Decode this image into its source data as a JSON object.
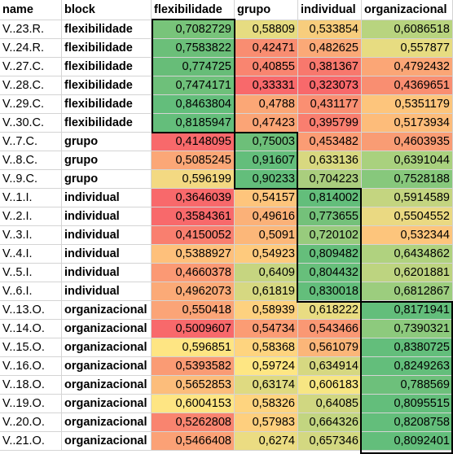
{
  "columns": [
    "name",
    "block",
    "flexibilidade",
    "grupo",
    "individual",
    "organizacional"
  ],
  "rows": [
    {
      "name": "V..23.R.",
      "block": "flexibilidade",
      "values": [
        "0,7082729",
        "0,58809",
        "0,533854",
        "0,6086518"
      ],
      "colors": [
        "#78c47a",
        "#e6dc81",
        "#f7cd7d",
        "#b8d47f"
      ]
    },
    {
      "name": "V..24.R.",
      "block": "flexibilidade",
      "values": [
        "0,7583822",
        "0,42471",
        "0,482625",
        "0,557877"
      ],
      "colors": [
        "#6bbf79",
        "#f98d71",
        "#fba977",
        "#e7dc81"
      ]
    },
    {
      "name": "V..27.C.",
      "block": "flexibilidade",
      "values": [
        "0,774725",
        "0,40855",
        "0,381367",
        "0,4792432"
      ],
      "colors": [
        "#67bd78",
        "#f98570",
        "#f8786d",
        "#fba676"
      ]
    },
    {
      "name": "V..28.C.",
      "block": "flexibilidade",
      "values": [
        "0,7474171",
        "0,33331",
        "0,323073",
        "0,4369651"
      ],
      "colors": [
        "#6ec07a",
        "#f8696b",
        "#f8696b",
        "#f98e71"
      ]
    },
    {
      "name": "V..29.C.",
      "block": "flexibilidade",
      "values": [
        "0,8463804",
        "0,4788",
        "0,431177",
        "0,5351179"
      ],
      "colors": [
        "#63be7b",
        "#fba776",
        "#fa8f72",
        "#fdc57c"
      ]
    },
    {
      "name": "V..30.C.",
      "block": "flexibilidade",
      "values": [
        "0,8185947",
        "0,47423",
        "0,395799",
        "0,5173934"
      ],
      "colors": [
        "#64be7b",
        "#fba476",
        "#f97e6f",
        "#fdbc7a"
      ]
    },
    {
      "name": "V..7.C.",
      "block": "grupo",
      "values": [
        "0,4148095",
        "0,75003",
        "0,453482",
        "0,4603935"
      ],
      "colors": [
        "#f8696b",
        "#6dbf79",
        "#fb9c74",
        "#f99c74"
      ]
    },
    {
      "name": "V..8.C.",
      "block": "grupo",
      "values": [
        "0,5085245",
        "0,91607",
        "0,633136",
        "0,6391044"
      ],
      "colors": [
        "#fba777",
        "#63be7b",
        "#d8d880",
        "#a9d17e"
      ]
    },
    {
      "name": "V..9.C.",
      "block": "grupo",
      "values": [
        "0,596199",
        "0,90233",
        "0,704223",
        "0,7528188"
      ],
      "colors": [
        "#f3d982",
        "#63be7b",
        "#aace7e",
        "#87c87c"
      ]
    },
    {
      "name": "V..1.I.",
      "block": "individual",
      "values": [
        "0,3646039",
        "0,54157",
        "0,814002",
        "0,5914589"
      ],
      "colors": [
        "#f8696b",
        "#fec57c",
        "#63be7b",
        "#c4d580"
      ]
    },
    {
      "name": "V..2.I.",
      "block": "individual",
      "values": [
        "0,3584361",
        "0,49616",
        "0,773655",
        "0,5504552"
      ],
      "colors": [
        "#f8696b",
        "#fbb178",
        "#74c17a",
        "#ead982"
      ]
    },
    {
      "name": "V..3.I.",
      "block": "individual",
      "values": [
        "0,4150052",
        "0,5091",
        "0,720102",
        "0,532344"
      ],
      "colors": [
        "#f97f6f",
        "#fcb779",
        "#98cb7d",
        "#fdc57c"
      ]
    },
    {
      "name": "V..4.I.",
      "block": "individual",
      "values": [
        "0,5388927",
        "0,54923",
        "0,809482",
        "0,6434862"
      ],
      "colors": [
        "#fec07b",
        "#feca7d",
        "#65be7b",
        "#b0d27f"
      ]
    },
    {
      "name": "V..5.I.",
      "block": "individual",
      "values": [
        "0,4660378",
        "0,6409",
        "0,804432",
        "0,6201881"
      ],
      "colors": [
        "#fb9974",
        "#c6d580",
        "#67bf7b",
        "#bdd480"
      ]
    },
    {
      "name": "V..6.I.",
      "block": "individual",
      "values": [
        "0,4962073",
        "0,61819",
        "0,830018",
        "0,6812867"
      ],
      "colors": [
        "#fbaa77",
        "#d6d881",
        "#63be7b",
        "#9ccd7e"
      ]
    },
    {
      "name": "V..13.O.",
      "block": "organizacional",
      "values": [
        "0,550418",
        "0,58939",
        "0,618222",
        "0,8171941"
      ],
      "colors": [
        "#fba477",
        "#fdd17f",
        "#e9dc82",
        "#63be7b"
      ]
    },
    {
      "name": "V..14.O.",
      "block": "organizacional",
      "values": [
        "0,5009607",
        "0,54734",
        "0,543466",
        "0,7390321"
      ],
      "colors": [
        "#f8696b",
        "#fb9c74",
        "#fa9874",
        "#8dca7d"
      ]
    },
    {
      "name": "V..15.O.",
      "block": "organizacional",
      "values": [
        "0,596851",
        "0,58368",
        "0,561079",
        "0,8380725"
      ],
      "colors": [
        "#fee583",
        "#fed47f",
        "#fbb679",
        "#63be7b"
      ]
    },
    {
      "name": "V..16.O.",
      "block": "organizacional",
      "values": [
        "0,5393582",
        "0,59724",
        "0,634914",
        "0,8249263"
      ],
      "colors": [
        "#fa9b74",
        "#fee683",
        "#d6d881",
        "#63be7b"
      ]
    },
    {
      "name": "V..18.O.",
      "block": "organizacional",
      "values": [
        "0,5652853",
        "0,63174",
        "0,606183",
        "0,788569"
      ],
      "colors": [
        "#fcbd7b",
        "#dfda81",
        "#f7e683",
        "#6dc07b"
      ]
    },
    {
      "name": "V..19.O.",
      "block": "organizacional",
      "values": [
        "0,6004153",
        "0,58326",
        "0,64085",
        "0,8095515"
      ],
      "colors": [
        "#fee583",
        "#fed47f",
        "#d0d781",
        "#63be7b"
      ]
    },
    {
      "name": "V..20.O.",
      "block": "organizacional",
      "values": [
        "0,5262808",
        "0,57983",
        "0,664326",
        "0,8208758"
      ],
      "colors": [
        "#f9846f",
        "#fecf7e",
        "#c2d580",
        "#63be7b"
      ]
    },
    {
      "name": "V..21.O.",
      "block": "organizacional",
      "values": [
        "0,5466408",
        "0,6274",
        "0,657346",
        "0,8092401"
      ],
      "colors": [
        "#fba176",
        "#ebdc82",
        "#d3d881",
        "#63be7b"
      ]
    }
  ]
}
